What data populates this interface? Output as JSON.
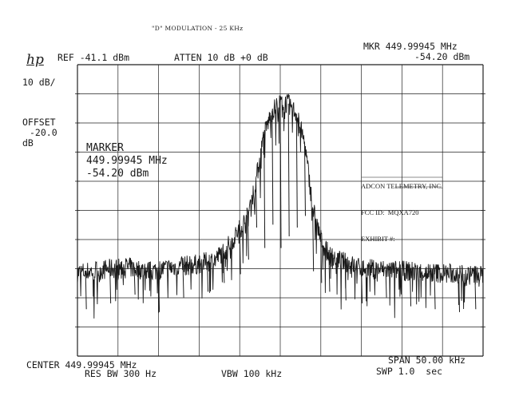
{
  "header": {
    "title": "\"D\" MODULATION - 25 KHz",
    "logo": "hp",
    "ref": "REF -41.1 dBm",
    "atten": "ATTEN 10 dB +0 dB",
    "mkr_freq": "MKR 449.99945 MHz",
    "mkr_level": "-54.20 dBm",
    "scale": "10 dB/",
    "offset_label": "OFFSET",
    "offset_value": "-20.0",
    "offset_unit": "dB"
  },
  "marker_box": {
    "label": "MARKER",
    "freq": "449.99945 MHz",
    "level": "-54.20 dBm"
  },
  "exhibit_box": {
    "line1": "ADCON TELEMETRY, INC.",
    "line2": "FCC ID:  MQXA720",
    "line3": "EXHIBIT #:"
  },
  "footer": {
    "center": "CENTER 449.99945 MHz",
    "span": "SPAN 50.00 kHz",
    "res_bw": "RES BW 300 Hz",
    "vbw": "VBW 100 kHz",
    "swp": "SWP 1.0  sec"
  },
  "chart_data": {
    "type": "line",
    "title": "\"D\" MODULATION - 25 KHz",
    "xlabel": "",
    "ylabel": "",
    "x_unit": "MHz",
    "y_unit": "dBm",
    "xlim": [
      449.97445,
      450.02445
    ],
    "ylim": [
      -141.1,
      -41.1
    ],
    "grid": true,
    "grid_divisions": [
      10,
      10
    ],
    "series": [
      {
        "x": [
          449.97445,
          449.97745,
          449.98045,
          449.98345,
          449.98645,
          449.98945,
          449.99145,
          449.99345,
          449.99545,
          449.99645,
          449.99745,
          449.99845,
          449.99945,
          450.00045,
          450.00145,
          450.00245,
          450.00345,
          450.00445,
          450.00545,
          450.00745,
          450.00945,
          450.01245,
          450.01545,
          450.01845,
          450.02145,
          450.02445
        ],
        "y": [
          -112.5,
          -111.5,
          -110.5,
          -112.0,
          -110.5,
          -109.5,
          -108.0,
          -102.0,
          -93.0,
          -81.0,
          -65.0,
          -57.0,
          -54.2,
          -54.5,
          -58.0,
          -68.0,
          -90.0,
          -101.0,
          -106.5,
          -109.0,
          -111.0,
          -111.5,
          -112.0,
          -112.5,
          -113.0,
          -113.5
        ]
      }
    ],
    "dips": [
      [
        449.97545,
        -125
      ],
      [
        449.97845,
        -123
      ],
      [
        449.98145,
        -120
      ],
      [
        449.98445,
        -126
      ],
      [
        449.98745,
        -121
      ],
      [
        449.99045,
        -119
      ],
      [
        449.99245,
        -116
      ],
      [
        449.99445,
        -113
      ],
      [
        449.99545,
        -108
      ],
      [
        449.99645,
        -97
      ],
      [
        449.99745,
        -104
      ],
      [
        449.99845,
        -96
      ],
      [
        449.99945,
        -104
      ],
      [
        450.00045,
        -100
      ],
      [
        450.00145,
        -97
      ],
      [
        450.00245,
        -93
      ],
      [
        450.00345,
        -112
      ],
      [
        450.00445,
        -116
      ],
      [
        450.00545,
        -119
      ],
      [
        450.00745,
        -122
      ],
      [
        450.00945,
        -123
      ],
      [
        450.01245,
        -121
      ],
      [
        450.01545,
        -124
      ],
      [
        450.01845,
        -125
      ],
      [
        450.02145,
        -126
      ],
      [
        450.02345,
        -125
      ]
    ]
  }
}
